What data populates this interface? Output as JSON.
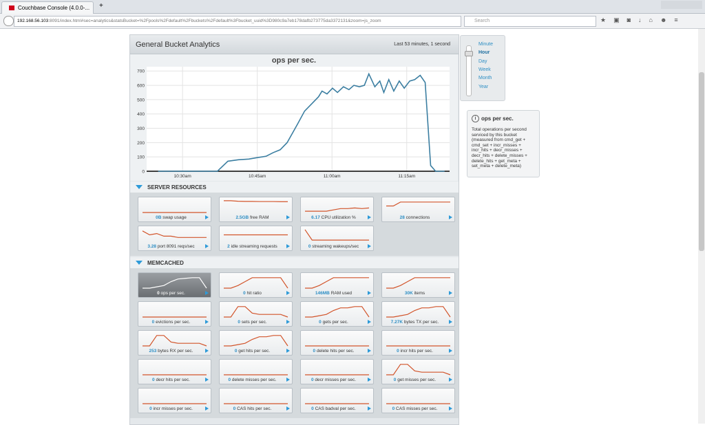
{
  "browser": {
    "tab_title": "Couchbase Console (4.0.0-...",
    "url_host": "192.168.56.103",
    "url_rest": ":8091/index.html#sec=analytics&statsBucket=%2Fpools%2Fdefault%2Fbuckets%2Fdefault%3Fbucket_uuid%3D980c9a7eb178dafb273775da3372131&zoom=js_zoom",
    "search_placeholder": "Search"
  },
  "panel": {
    "title": "General Bucket Analytics",
    "period": "Last 53 minutes, 1 second"
  },
  "chart_data": {
    "type": "line",
    "title": "ops per sec.",
    "color": "#3b7ea1",
    "x": [
      25.1,
      34.9,
      37.0,
      39.1,
      41.2,
      43.3,
      45.0,
      46.8,
      48.2,
      49.6,
      51.0,
      53.1,
      54.5,
      55.9,
      57.3,
      58.0,
      59.0,
      60.1,
      61.1,
      62.3,
      63.4,
      64.4,
      65.5,
      66.5,
      67.4,
      68.6,
      69.6,
      70.4,
      71.4,
      72.4,
      73.5,
      74.5,
      75.6,
      76.6,
      77.7,
      78.7,
      79.8,
      80.8,
      82.6
    ],
    "values": [
      0,
      0,
      0,
      70,
      80,
      85,
      95,
      105,
      130,
      150,
      200,
      330,
      420,
      470,
      520,
      560,
      540,
      580,
      550,
      590,
      570,
      600,
      590,
      600,
      680,
      590,
      630,
      550,
      640,
      560,
      630,
      580,
      630,
      640,
      670,
      620,
      40,
      0,
      0
    ],
    "xlim": [
      22.8,
      83.6
    ],
    "xticks": [
      {
        "value": 30,
        "label": "10:30am"
      },
      {
        "value": 45,
        "label": "10:45am"
      },
      {
        "value": 60,
        "label": "11:00am"
      },
      {
        "value": 75,
        "label": "11:15am"
      }
    ],
    "ylim": [
      0,
      730
    ],
    "yticks": [
      0,
      100,
      200,
      300,
      400,
      500,
      600,
      700
    ],
    "grid": true
  },
  "zoom": {
    "options": [
      "Minute",
      "Hour",
      "Day",
      "Week",
      "Month",
      "Year"
    ],
    "selected": "Hour"
  },
  "info": {
    "title": "ops per sec.",
    "description": "Total operations per second serviced by this bucket (measured from cmd_get + cmd_set + incr_misses + incr_hits + decr_misses + decr_hits + delete_misses + delete_hits + get_meta + set_meta + delete_meta)"
  },
  "sections": [
    {
      "title": "SERVER RESOURCES",
      "tiles": [
        {
          "value": "0B",
          "label": "swap usage",
          "trend": [
            0,
            0,
            0,
            0,
            0,
            0,
            0,
            0,
            0,
            0
          ]
        },
        {
          "value": "2.5GB",
          "label": "free RAM",
          "trend": [
            9,
            9,
            8.6,
            8.5,
            8.5,
            8.4,
            8.4,
            8.4,
            8.3,
            8.3
          ]
        },
        {
          "value": "6.17",
          "label": "CPU utilization %",
          "trend": [
            1,
            1,
            1,
            1,
            2,
            3,
            3,
            3.5,
            3,
            3.5
          ]
        },
        {
          "value": "28",
          "label": "connections",
          "trend": [
            5,
            5,
            8,
            8,
            8,
            8,
            8,
            8,
            8,
            8
          ]
        },
        {
          "value": "3.28",
          "label": "port 8091 reqs/sec",
          "trend": [
            8,
            5,
            6,
            4,
            4,
            3,
            3,
            3,
            3,
            3
          ]
        },
        {
          "value": "2",
          "label": "idle streaming requests",
          "trend": [
            5,
            5,
            5,
            5,
            5,
            5,
            5,
            5,
            5,
            5
          ]
        },
        {
          "value": "0",
          "label": "streaming wakeups/sec",
          "trend": [
            9,
            1,
            1,
            1,
            1,
            1,
            1,
            1,
            1,
            1
          ]
        }
      ]
    },
    {
      "title": "MEMCACHED",
      "tiles": [
        {
          "value": "0",
          "label": "ops per sec.",
          "selected": true,
          "trend": [
            0,
            0,
            1,
            2,
            5,
            7,
            7.5,
            8,
            8,
            0
          ]
        },
        {
          "value": "0",
          "label": "hit ratio",
          "trend": [
            0,
            0,
            2,
            5,
            8,
            8,
            8,
            8,
            8,
            0
          ]
        },
        {
          "value": "146MB",
          "label": "RAM used",
          "trend": [
            0,
            0,
            2,
            5,
            8,
            8,
            8,
            8,
            8,
            8
          ]
        },
        {
          "value": "30K",
          "label": "items",
          "trend": [
            0,
            0,
            2,
            5,
            8,
            8,
            8,
            8,
            8,
            8
          ]
        },
        {
          "value": "0",
          "label": "evictions per sec.",
          "trend": [
            0,
            0,
            0,
            0,
            0,
            0,
            0,
            0,
            0,
            0
          ]
        },
        {
          "value": "0",
          "label": "sets per sec.",
          "trend": [
            0,
            0,
            8,
            8,
            3,
            2,
            2,
            2,
            2,
            0
          ]
        },
        {
          "value": "0",
          "label": "gets per sec.",
          "trend": [
            0,
            0,
            1,
            2,
            5,
            7,
            7,
            8,
            8,
            0
          ]
        },
        {
          "value": "7.27K",
          "label": "bytes TX per sec.",
          "trend": [
            0,
            0,
            1,
            2,
            5,
            7,
            7,
            8,
            8,
            0
          ]
        },
        {
          "value": "253",
          "label": "bytes RX per sec.",
          "trend": [
            0,
            0,
            8,
            8,
            3,
            2,
            2,
            2,
            2,
            0
          ]
        },
        {
          "value": "0",
          "label": "get hits per sec.",
          "trend": [
            0,
            0,
            1,
            2,
            5,
            7,
            7,
            8,
            8,
            0
          ]
        },
        {
          "value": "0",
          "label": "delete hits per sec.",
          "trend": [
            0,
            0,
            0,
            0,
            0,
            0,
            0,
            0,
            0,
            0
          ]
        },
        {
          "value": "0",
          "label": "incr hits per sec.",
          "trend": [
            0,
            0,
            0,
            0,
            0,
            0,
            0,
            0,
            0,
            0
          ]
        },
        {
          "value": "0",
          "label": "decr hits per sec.",
          "trend": [
            0,
            0,
            0,
            0,
            0,
            0,
            0,
            0,
            0,
            0
          ]
        },
        {
          "value": "0",
          "label": "delete misses per sec.",
          "trend": [
            0,
            0,
            0,
            0,
            0,
            0,
            0,
            0,
            0,
            0
          ]
        },
        {
          "value": "0",
          "label": "decr misses per sec.",
          "trend": [
            0,
            0,
            0,
            0,
            0,
            0,
            0,
            0,
            0,
            0
          ]
        },
        {
          "value": "0",
          "label": "get misses per sec.",
          "trend": [
            0,
            0,
            8,
            8,
            3,
            2,
            2,
            2,
            2,
            0
          ]
        },
        {
          "value": "0",
          "label": "incr misses per sec.",
          "trend": [
            0,
            0,
            0,
            0,
            0,
            0,
            0,
            0,
            0,
            0
          ]
        },
        {
          "value": "0",
          "label": "CAS hits per sec.",
          "trend": [
            0,
            0,
            0,
            0,
            0,
            0,
            0,
            0,
            0,
            0
          ]
        },
        {
          "value": "0",
          "label": "CAS badval per sec.",
          "trend": [
            0,
            0,
            0,
            0,
            0,
            0,
            0,
            0,
            0,
            0
          ]
        },
        {
          "value": "0",
          "label": "CAS misses per sec.",
          "trend": [
            0,
            0,
            0,
            0,
            0,
            0,
            0,
            0,
            0,
            0
          ]
        }
      ]
    }
  ]
}
